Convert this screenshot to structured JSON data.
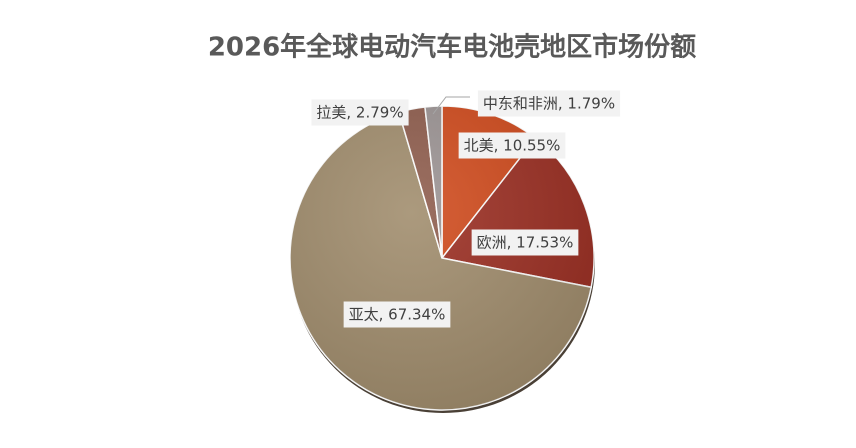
{
  "chart_data": {
    "type": "pie",
    "title": "2026年全球电动汽车电池壳地区市场份额",
    "categories": [
      "北美",
      "欧洲",
      "亚太",
      "拉美",
      "中东和非洲"
    ],
    "values": [
      10.55,
      17.53,
      67.34,
      2.79,
      1.79
    ],
    "value_labels": [
      "北美, 10.55%",
      "欧洲, 17.53%",
      "亚太, 67.34%",
      "拉美, 2.79%",
      "中东和非洲, 1.79%"
    ],
    "colors": [
      "#d04a1c",
      "#9b2e22",
      "#a08c6c",
      "#8e5c4c",
      "#9b9393"
    ]
  }
}
